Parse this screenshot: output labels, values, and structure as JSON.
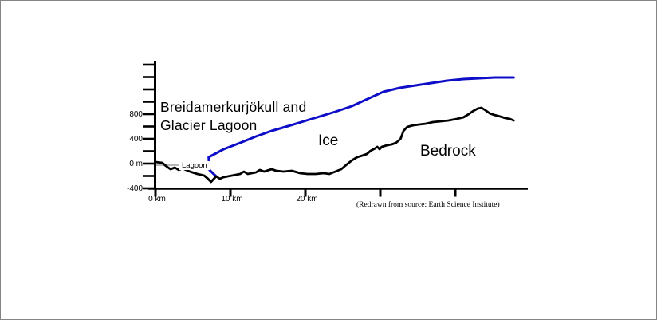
{
  "figure": {
    "title_line1": "Breidamerkurjökull and",
    "title_line2": "Glacier Lagoon",
    "ice_label": "Ice",
    "bedrock_label": "Bedrock",
    "lagoon_label": "Lagoon",
    "caption": "(Redrawn from source: Earth Science Institute)"
  },
  "colors": {
    "ice": "#0e0ec8",
    "bedrock": "#000000",
    "axis": "#000000",
    "lagoon_line": "#707070",
    "border": "#848484"
  },
  "chart_data": {
    "type": "line",
    "title": "Breidamerkurjökull and Glacier Lagoon",
    "x_unit": "km",
    "y_unit": "m",
    "xlim": [
      0,
      49
    ],
    "ylim": [
      -450,
      1650
    ],
    "grid": false,
    "x_ticks": [
      {
        "km": 0,
        "label": "0 km"
      },
      {
        "km": 10,
        "label": "10 km"
      },
      {
        "km": 20,
        "label": "20 km"
      },
      {
        "km": 30,
        "label": ""
      },
      {
        "km": 40,
        "label": ""
      }
    ],
    "y_ticks": [
      {
        "m": -400,
        "label": "-400"
      },
      {
        "m": -200,
        "label": ""
      },
      {
        "m": 0,
        "label": "0 m"
      },
      {
        "m": 200,
        "label": ""
      },
      {
        "m": 400,
        "label": "400"
      },
      {
        "m": 600,
        "label": ""
      },
      {
        "m": 800,
        "label": "800"
      },
      {
        "m": 1000,
        "label": ""
      },
      {
        "m": 1200,
        "label": ""
      },
      {
        "m": 1400,
        "label": ""
      },
      {
        "m": 1600,
        "label": ""
      }
    ],
    "series": [
      {
        "name": "Ice surface",
        "color_key": "ice",
        "stroke_width": 3,
        "points_km_m": [
          [
            8.1,
            -206
          ],
          [
            7.2,
            -103
          ],
          [
            7.1,
            103
          ],
          [
            9.1,
            232
          ],
          [
            11.3,
            335
          ],
          [
            13.4,
            439
          ],
          [
            15.5,
            529
          ],
          [
            17.7,
            606
          ],
          [
            19.8,
            684
          ],
          [
            21.9,
            761
          ],
          [
            24.0,
            839
          ],
          [
            26.2,
            929
          ],
          [
            28.3,
            1045
          ],
          [
            30.4,
            1161
          ],
          [
            32.6,
            1226
          ],
          [
            34.7,
            1265
          ],
          [
            36.8,
            1303
          ],
          [
            38.9,
            1342
          ],
          [
            41.1,
            1368
          ],
          [
            43.2,
            1381
          ],
          [
            45.3,
            1394
          ],
          [
            47.8,
            1394
          ]
        ]
      },
      {
        "name": "Bedrock",
        "color_key": "bedrock",
        "stroke_width": 2.8,
        "points_km_m": [
          [
            0,
            26
          ],
          [
            0.9,
            13
          ],
          [
            1.4,
            -39
          ],
          [
            2,
            -90
          ],
          [
            2.6,
            -65
          ],
          [
            3.1,
            -103
          ],
          [
            3.6,
            -77
          ],
          [
            4.6,
            -129
          ],
          [
            5.6,
            -168
          ],
          [
            6.5,
            -194
          ],
          [
            7,
            -245
          ],
          [
            7.4,
            -297
          ],
          [
            7.8,
            -245
          ],
          [
            8.1,
            -206
          ],
          [
            8.6,
            -245
          ],
          [
            9.1,
            -219
          ],
          [
            10.2,
            -194
          ],
          [
            11.3,
            -168
          ],
          [
            11.8,
            -129
          ],
          [
            12.3,
            -168
          ],
          [
            13.4,
            -142
          ],
          [
            13.9,
            -103
          ],
          [
            14.5,
            -129
          ],
          [
            15.5,
            -90
          ],
          [
            16.1,
            -116
          ],
          [
            17.1,
            -129
          ],
          [
            18.2,
            -116
          ],
          [
            19.3,
            -155
          ],
          [
            20.3,
            -168
          ],
          [
            21.4,
            -168
          ],
          [
            22.4,
            -155
          ],
          [
            23.2,
            -168
          ],
          [
            24,
            -129
          ],
          [
            24.8,
            -90
          ],
          [
            25.4,
            -26
          ],
          [
            26.2,
            52
          ],
          [
            26.9,
            103
          ],
          [
            27.6,
            129
          ],
          [
            28.2,
            155
          ],
          [
            28.7,
            206
          ],
          [
            29.3,
            245
          ],
          [
            29.6,
            271
          ],
          [
            29.9,
            232
          ],
          [
            30.2,
            271
          ],
          [
            30.9,
            297
          ],
          [
            31.5,
            310
          ],
          [
            32.1,
            335
          ],
          [
            32.7,
            400
          ],
          [
            33.1,
            529
          ],
          [
            33.6,
            594
          ],
          [
            34.4,
            619
          ],
          [
            35.2,
            632
          ],
          [
            36.1,
            645
          ],
          [
            37,
            671
          ],
          [
            38.1,
            684
          ],
          [
            39.1,
            697
          ],
          [
            40.2,
            723
          ],
          [
            41.1,
            748
          ],
          [
            41.8,
            800
          ],
          [
            42.4,
            852
          ],
          [
            43,
            890
          ],
          [
            43.5,
            903
          ],
          [
            44,
            865
          ],
          [
            44.6,
            813
          ],
          [
            45.2,
            787
          ],
          [
            46,
            761
          ],
          [
            46.7,
            735
          ],
          [
            47.3,
            723
          ],
          [
            47.8,
            697
          ]
        ]
      }
    ],
    "lagoon_level_line": {
      "from_km": 0,
      "to_km": 7.15,
      "elevation_m": -26
    },
    "annotations": [
      "Ice",
      "Bedrock",
      "Lagoon"
    ],
    "caption": "(Redrawn from source: Earth Science Institute)"
  }
}
